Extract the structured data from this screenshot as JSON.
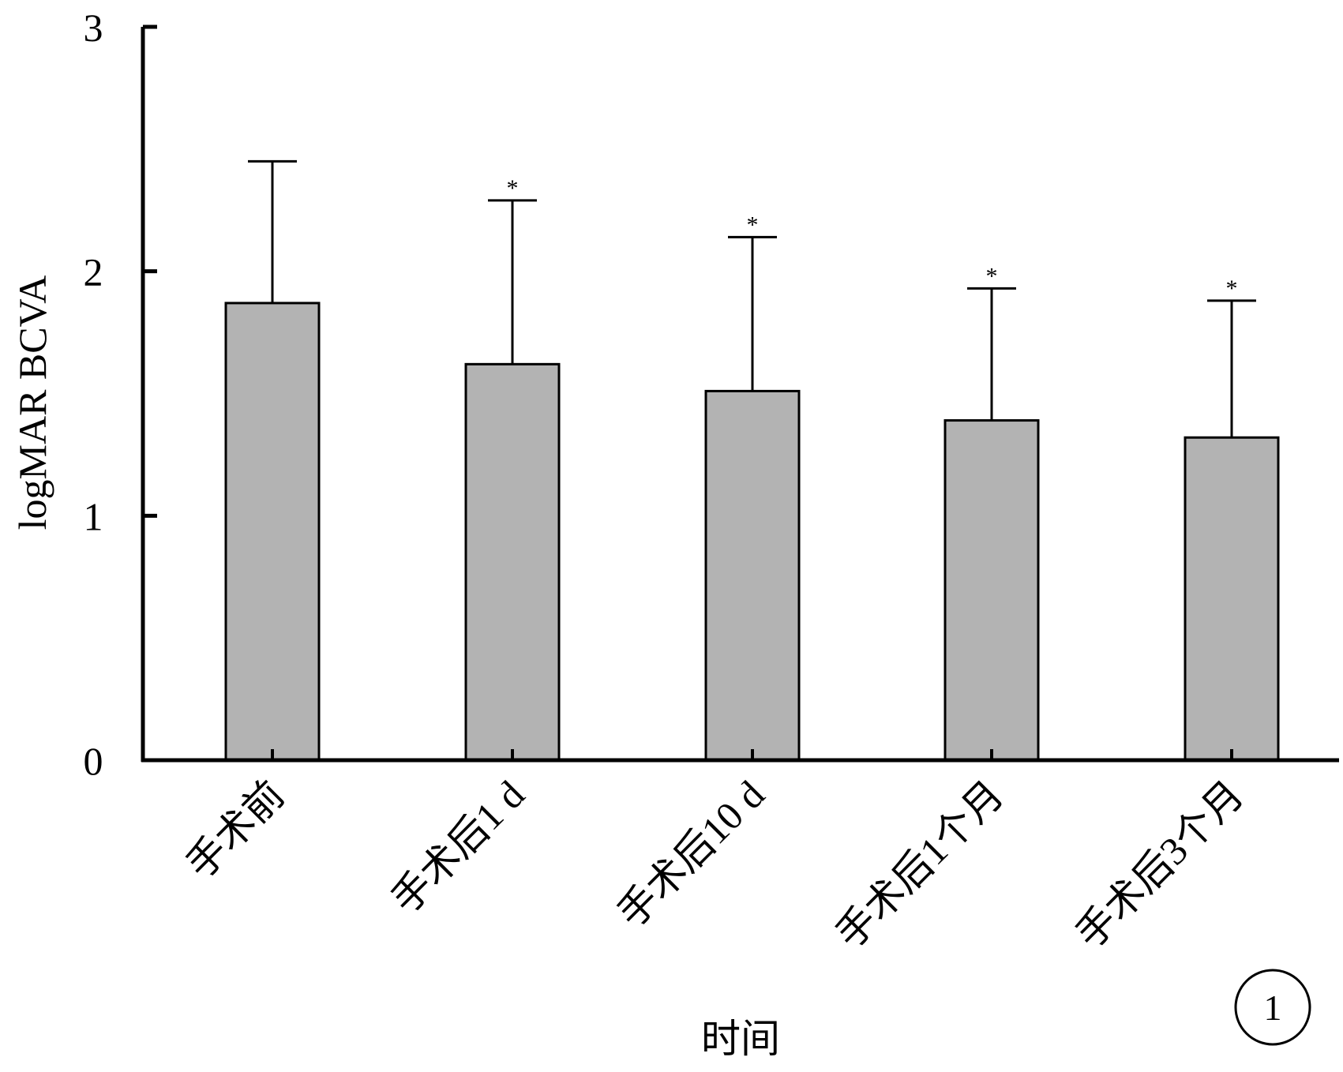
{
  "chart_data": {
    "type": "bar",
    "title": "",
    "xlabel": "时间",
    "ylabel": "logMAR BCVA",
    "ylim": [
      0,
      3
    ],
    "yticks": [
      "0",
      "1",
      "2",
      "3"
    ],
    "categories": [
      "手术前",
      "手术后1 d",
      "手术后10 d",
      "手术后1个月",
      "手术后3个月"
    ],
    "values": [
      1.87,
      1.62,
      1.51,
      1.39,
      1.32
    ],
    "error_upper": [
      2.45,
      2.29,
      2.14,
      1.93,
      1.88
    ],
    "significance": [
      "",
      "*",
      "*",
      "*",
      "*"
    ],
    "bar_color": "#b3b3b3",
    "grid": false,
    "legend": "none",
    "panel_label": "1"
  }
}
